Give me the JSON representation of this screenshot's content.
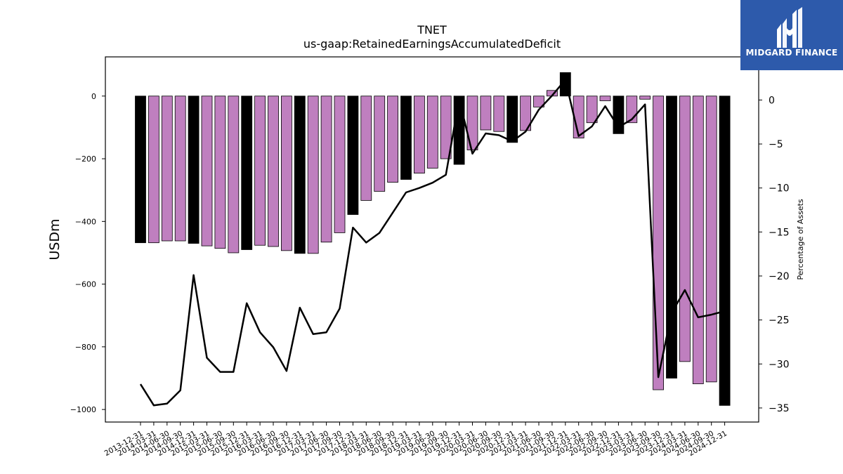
{
  "chart_data": {
    "type": "bar",
    "title": "TNET",
    "subtitle": "us-gaap:RetainedEarningsAccumulatedDeficit",
    "ylabel": "USDm",
    "y2label": "Percentage of Assets",
    "ylim": [
      -1040,
      125
    ],
    "y2lim": [
      -36.6,
      4.9
    ],
    "yticks": [
      0,
      -200,
      -400,
      -600,
      -800,
      -1000
    ],
    "y2ticks": [
      0,
      -5,
      -10,
      -15,
      -20,
      -25,
      -30,
      -35
    ],
    "categories": [
      "2013-12-31",
      "2014-03-31",
      "2014-06-30",
      "2014-09-30",
      "2014-12-31",
      "2015-03-31",
      "2015-06-30",
      "2015-09-30",
      "2015-12-31",
      "2016-03-31",
      "2016-06-30",
      "2016-09-30",
      "2016-12-31",
      "2017-03-31",
      "2017-06-30",
      "2017-09-30",
      "2017-12-31",
      "2018-03-31",
      "2018-06-30",
      "2018-09-30",
      "2018-12-31",
      "2019-03-31",
      "2019-06-30",
      "2019-09-30",
      "2019-12-31",
      "2020-03-31",
      "2020-06-30",
      "2020-09-30",
      "2020-12-31",
      "2021-03-31",
      "2021-06-30",
      "2021-09-30",
      "2021-12-31",
      "2022-03-31",
      "2022-06-30",
      "2022-09-30",
      "2022-12-31",
      "2023-03-31",
      "2023-06-30",
      "2023-09-30",
      "2023-12-31",
      "2024-03-31",
      "2024-06-30",
      "2024-09-30",
      "2024-12-31"
    ],
    "series": [
      {
        "type": "bar",
        "values": [
          -468,
          -468,
          -462,
          -462,
          -470,
          -478,
          -486,
          -500,
          -490,
          -476,
          -480,
          -493,
          -502,
          -502,
          -466,
          -436,
          -378,
          -333,
          -304,
          -275,
          -266,
          -246,
          -230,
          -200,
          -218,
          -172,
          -108,
          -113,
          -148,
          -110,
          -35,
          18,
          75,
          -134,
          -85,
          -15,
          -120,
          -85,
          -10,
          -937,
          -900,
          -847,
          -918,
          -912,
          -987
        ],
        "year_end_color": "#000000",
        "quarter_color": "#bf7fbf"
      },
      {
        "type": "line",
        "axis": "secondary",
        "color": "#000000",
        "values": [
          -32.3,
          -34.7,
          -34.5,
          -33.0,
          -19.9,
          -29.3,
          -30.9,
          -30.9,
          -23.1,
          -26.4,
          -28.1,
          -30.8,
          -23.6,
          -26.6,
          -26.4,
          -23.7,
          -14.5,
          -16.2,
          -15.1,
          -12.8,
          -10.5,
          -10.0,
          -9.4,
          -8.5,
          0.1,
          -6.1,
          -3.8,
          -4.0,
          -4.7,
          -3.6,
          -1.1,
          0.5,
          2.3,
          -4.1,
          -3.0,
          -0.7,
          -3.1,
          -2.2,
          -0.5,
          -31.5,
          -24.2,
          -21.6,
          -24.7,
          -24.4,
          -24.0
        ]
      }
    ],
    "grid": false
  },
  "logo": {
    "text": "MIDGARD FINANCE",
    "icon": "midgard-m-logo-icon",
    "background": "#2d5aab"
  }
}
